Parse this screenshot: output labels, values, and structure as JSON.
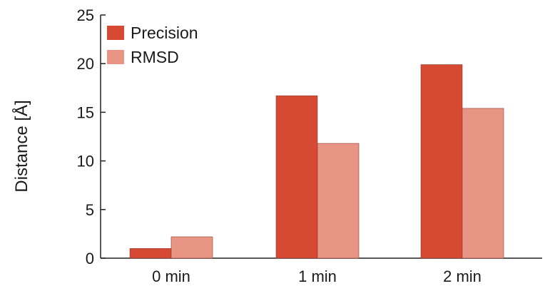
{
  "chart_data": {
    "type": "bar",
    "categories": [
      "0 min",
      "1 min",
      "2 min"
    ],
    "series": [
      {
        "name": "Precision",
        "values": [
          1.0,
          16.7,
          19.9
        ],
        "color": "#d64a33"
      },
      {
        "name": "RMSD",
        "values": [
          2.2,
          11.8,
          15.4
        ],
        "color": "#e99585"
      }
    ],
    "title": "",
    "xlabel": "",
    "ylabel": "Distance [Å]",
    "ylim": [
      0,
      25
    ],
    "yticks": [
      0,
      5,
      10,
      15,
      20,
      25
    ],
    "legend": "top-left",
    "grid": false
  }
}
